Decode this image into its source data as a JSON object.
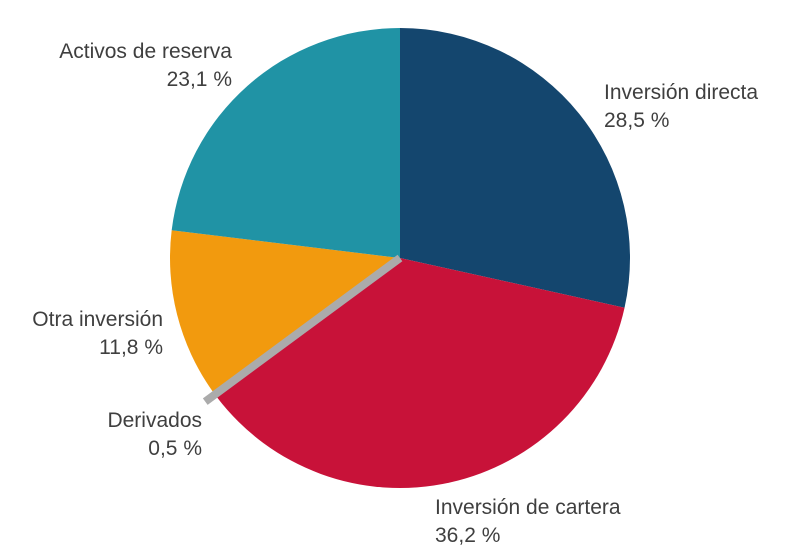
{
  "chart_data": {
    "type": "pie",
    "title": "",
    "legend_position": "none",
    "labels_placement": "outside",
    "start_angle_deg": 0,
    "direction": "clockwise",
    "text_color": "#3f3f3f",
    "background_color": "#ffffff",
    "slices": [
      {
        "label": "Inversión directa",
        "value": 28.5,
        "display": "28,5 %",
        "color": "#14466e"
      },
      {
        "label": "Inversión de cartera",
        "value": 36.2,
        "display": "36,2 %",
        "color": "#c81239"
      },
      {
        "label": "Derivados",
        "value": 0.5,
        "display": "0,5 %",
        "color": "#ababab",
        "render": "line"
      },
      {
        "label": "Otra inversión",
        "value": 11.8,
        "display": "11,8 %",
        "color": "#f29a0e"
      },
      {
        "label": "Activos de reserva",
        "value": 23.1,
        "display": "23,1 %",
        "color": "#2093a5"
      }
    ]
  }
}
